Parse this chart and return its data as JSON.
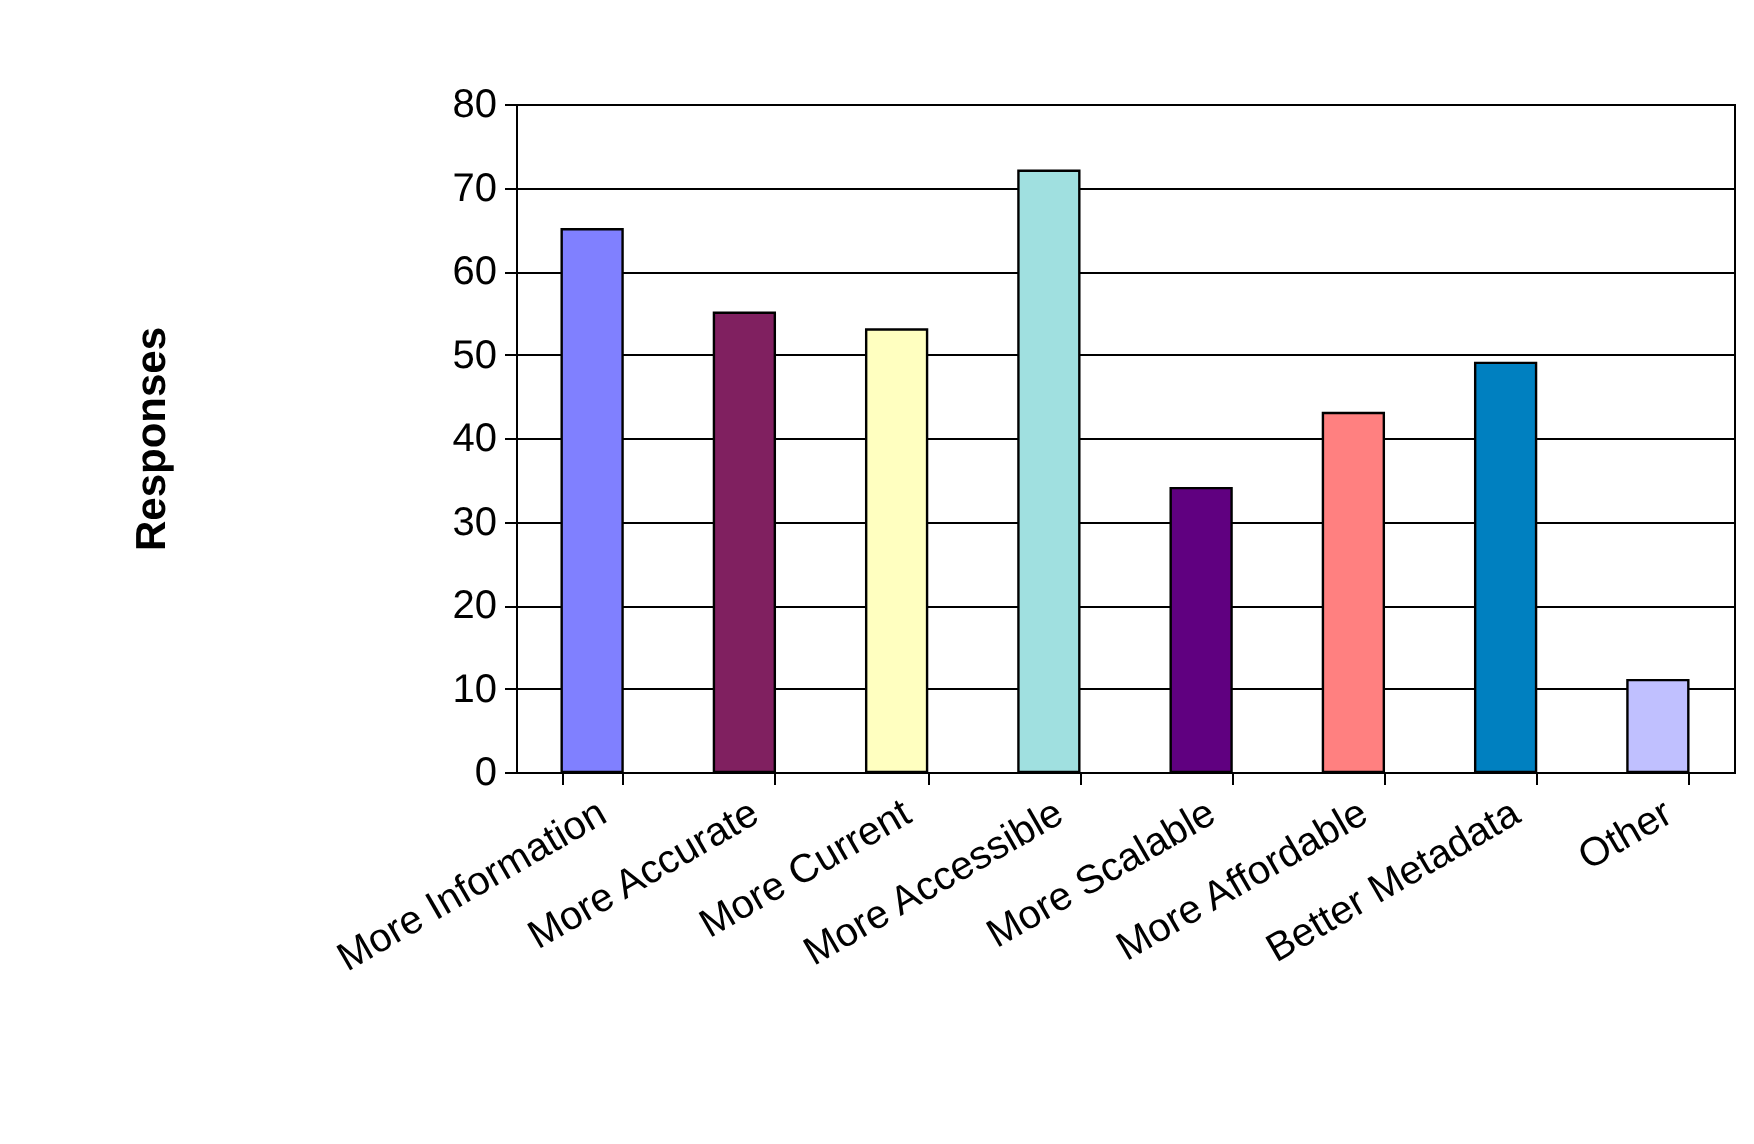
{
  "chart_data": {
    "type": "bar",
    "ylabel": "Responses",
    "categories": [
      "More Information",
      "More Accurate",
      "More Current",
      "More Accessible",
      "More Scalable",
      "More Affordable",
      "Better Metadata",
      "Other"
    ],
    "values": [
      65,
      55,
      53,
      72,
      34,
      43,
      49,
      11
    ],
    "colors": [
      "#8080ff",
      "#802060",
      "#ffffc0",
      "#a0e0e0",
      "#600080",
      "#ff8080",
      "#0080c0",
      "#c0c0ff"
    ],
    "ylim": [
      0,
      80
    ],
    "yticks": [
      0,
      10,
      20,
      30,
      40,
      50,
      60,
      70,
      80
    ],
    "grid": "y",
    "legend": false
  }
}
